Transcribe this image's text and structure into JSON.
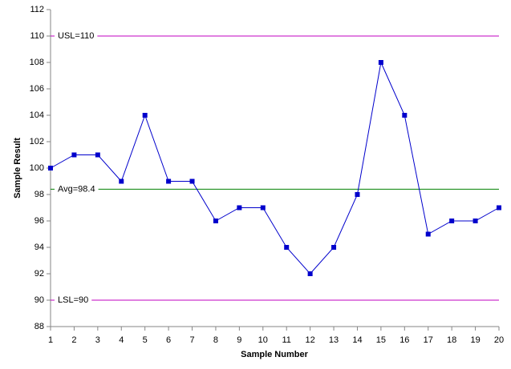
{
  "chart_data": {
    "type": "line",
    "x_label": "Sample Number",
    "y_label": "Sample Result",
    "x": [
      1,
      2,
      3,
      4,
      5,
      6,
      7,
      8,
      9,
      10,
      11,
      12,
      13,
      14,
      15,
      16,
      17,
      18,
      19,
      20
    ],
    "values": [
      100,
      101,
      101,
      99,
      104,
      99,
      99,
      96,
      97,
      97,
      94,
      92,
      94,
      98,
      108,
      104,
      95,
      96,
      96,
      97
    ],
    "color": "#0000cc",
    "xlim": [
      1,
      20
    ],
    "xticks": [
      1,
      2,
      3,
      4,
      5,
      6,
      7,
      8,
      9,
      10,
      11,
      12,
      13,
      14,
      15,
      16,
      17,
      18,
      19,
      20
    ],
    "ylim": [
      88,
      112
    ],
    "yticks": [
      88,
      90,
      92,
      94,
      96,
      98,
      100,
      102,
      104,
      106,
      108,
      110,
      112
    ],
    "reference_lines": [
      {
        "label": "USL=110",
        "value": 110,
        "color": "#c000c0"
      },
      {
        "label": "Avg=98.4",
        "value": 98.4,
        "color": "#008000"
      },
      {
        "label": "LSL=90",
        "value": 90,
        "color": "#c000c0"
      }
    ]
  }
}
